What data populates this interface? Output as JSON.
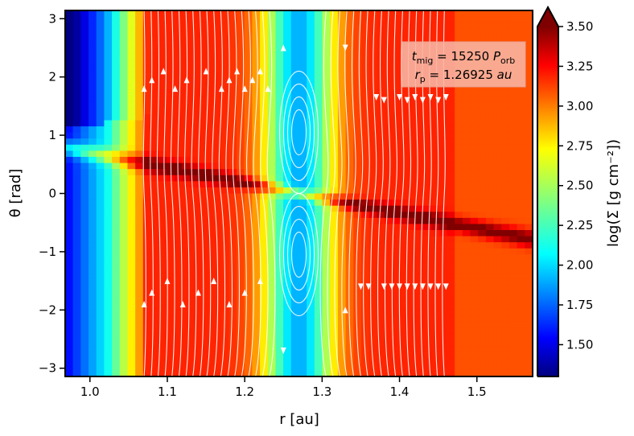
{
  "chart_data": {
    "type": "heatmap",
    "title": "",
    "xlabel": "r [au]",
    "ylabel": "θ [rad]",
    "colorbar_label": "log(Σ [g cm⁻²])",
    "xlim": [
      0.968,
      1.572
    ],
    "ylim": [
      -3.1416,
      3.1416
    ],
    "x_ticks": [
      1.0,
      1.1,
      1.2,
      1.3,
      1.4,
      1.5
    ],
    "x_tick_labels": [
      "1.0",
      "1.1",
      "1.2",
      "1.3",
      "1.4",
      "1.5"
    ],
    "y_ticks": [
      3,
      2,
      1,
      0,
      -1,
      -2,
      -3
    ],
    "y_tick_labels": [
      "3",
      "2",
      "1",
      "0",
      "−1",
      "−2",
      "−3"
    ],
    "color_range": [
      1.3,
      3.5
    ],
    "colorbar_ticks": [
      3.5,
      3.25,
      3.0,
      2.75,
      2.5,
      2.25,
      2.0,
      1.75,
      1.5
    ],
    "colorbar_tick_labels": [
      "3.50",
      "3.25",
      "3.00",
      "2.75",
      "2.50",
      "2.25",
      "2.00",
      "1.75",
      "1.50"
    ],
    "colorbar_extend": "max",
    "colormap": "jet",
    "planet": {
      "r": 1.26925,
      "theta": 0.0
    },
    "gap_center_r": 1.27,
    "spiral_arm": "thin dense arm crossing the planet, running from upper-left to lower-right",
    "streamlines": "white, with arrowheads; closed horseshoe-like loops above and below the planet near r ≈ 1.27",
    "annotation": {
      "line1": "t_mig = 15250 P_orb",
      "line2": "r_p = 1.26925 au",
      "line1_parts": {
        "var": "t",
        "sub": "mig",
        "eq": " = 15250 ",
        "unit": "P",
        "unit_sub": "orb"
      },
      "line2_parts": {
        "var": "r",
        "sub": "p",
        "eq": " = 1.26925 ",
        "unit": "au"
      },
      "box_color": "#f8b3a0",
      "position": "top-right"
    }
  }
}
